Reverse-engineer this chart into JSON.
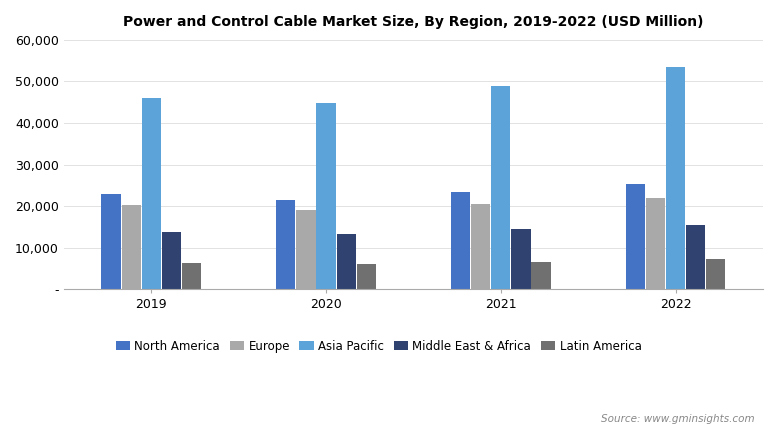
{
  "title": "Power and Control Cable Market Size, By Region, 2019-2022 (USD Million)",
  "years": [
    "2019",
    "2020",
    "2021",
    "2022"
  ],
  "regions": [
    "North America",
    "Europe",
    "Asia Pacific",
    "Middle East & Africa",
    "Latin America"
  ],
  "values": {
    "North America": [
      22800,
      21500,
      23500,
      25200
    ],
    "Europe": [
      20200,
      19000,
      20600,
      22000
    ],
    "Asia Pacific": [
      46000,
      44800,
      49000,
      53500
    ],
    "Middle East & Africa": [
      13700,
      13200,
      14500,
      15500
    ],
    "Latin America": [
      6400,
      6000,
      6600,
      7200
    ]
  },
  "colors": {
    "North America": "#4472C4",
    "Europe": "#A9A9A9",
    "Asia Pacific": "#5BA3D9",
    "Middle East & Africa": "#2F4270",
    "Latin America": "#707070"
  },
  "ylim": [
    0,
    60000
  ],
  "yticks": [
    0,
    10000,
    20000,
    30000,
    40000,
    50000,
    60000
  ],
  "ytick_labels": [
    "-",
    "10,000",
    "20,000",
    "30,000",
    "40,000",
    "50,000",
    "60,000"
  ],
  "source_text": "Source: www.gminsights.com",
  "background_color": "#ffffff",
  "bar_width": 0.11,
  "bar_gap": 0.005
}
